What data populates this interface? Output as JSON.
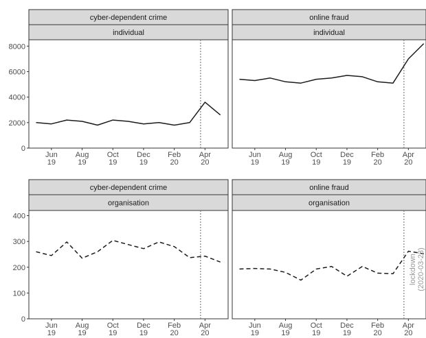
{
  "chart_data": [
    {
      "type": "line",
      "facet_col": "cyber-dependent crime",
      "facet_row": "individual",
      "x": [
        "2019-05",
        "2019-06",
        "2019-07",
        "2019-08",
        "2019-09",
        "2019-10",
        "2019-11",
        "2019-12",
        "2020-01",
        "2020-02",
        "2020-03",
        "2020-04",
        "2020-05"
      ],
      "values": [
        2000,
        1900,
        2200,
        2100,
        1800,
        2200,
        2100,
        1900,
        2000,
        1800,
        2000,
        3600,
        2600
      ],
      "ylim": [
        0,
        8500
      ],
      "yticks": [
        "0",
        "2000",
        "4000",
        "6000",
        "8000"
      ],
      "line_style": "solid",
      "lockdown": "2020-03-23"
    },
    {
      "type": "line",
      "facet_col": "online fraud",
      "facet_row": "individual",
      "x": [
        "2019-05",
        "2019-06",
        "2019-07",
        "2019-08",
        "2019-09",
        "2019-10",
        "2019-11",
        "2019-12",
        "2020-01",
        "2020-02",
        "2020-03",
        "2020-04",
        "2020-05"
      ],
      "values": [
        5400,
        5300,
        5500,
        5200,
        5100,
        5400,
        5500,
        5700,
        5600,
        5200,
        5100,
        7000,
        8200
      ],
      "ylim": [
        0,
        8500
      ],
      "line_style": "solid",
      "lockdown": "2020-03-23"
    },
    {
      "type": "line",
      "facet_col": "cyber-dependent crime",
      "facet_row": "organisation",
      "x": [
        "2019-05",
        "2019-06",
        "2019-07",
        "2019-08",
        "2019-09",
        "2019-10",
        "2019-11",
        "2019-12",
        "2020-01",
        "2020-02",
        "2020-03",
        "2020-04",
        "2020-05"
      ],
      "values": [
        260,
        245,
        298,
        235,
        260,
        304,
        288,
        272,
        298,
        280,
        237,
        243,
        220
      ],
      "ylim": [
        0,
        420
      ],
      "yticks": [
        "0",
        "100",
        "200",
        "300",
        "400"
      ],
      "line_style": "dashed",
      "lockdown": "2020-03-23"
    },
    {
      "type": "line",
      "facet_col": "online fraud",
      "facet_row": "organisation",
      "x": [
        "2019-05",
        "2019-06",
        "2019-07",
        "2019-08",
        "2019-09",
        "2019-10",
        "2019-11",
        "2019-12",
        "2020-01",
        "2020-02",
        "2020-03",
        "2020-04",
        "2020-05"
      ],
      "values": [
        193,
        195,
        193,
        180,
        150,
        193,
        203,
        165,
        203,
        177,
        175,
        262,
        252
      ],
      "ylim": [
        0,
        420
      ],
      "line_style": "dashed",
      "lockdown": "2020-03-23"
    }
  ],
  "x_ticks": [
    {
      "date": "2019-06",
      "month": "Jun",
      "year": "19"
    },
    {
      "date": "2019-08",
      "month": "Aug",
      "year": "19"
    },
    {
      "date": "2019-10",
      "month": "Oct",
      "year": "19"
    },
    {
      "date": "2019-12",
      "month": "Dec",
      "year": "19"
    },
    {
      "date": "2020-02",
      "month": "Feb",
      "year": "20"
    },
    {
      "date": "2020-04",
      "month": "Apr",
      "year": "20"
    }
  ],
  "annotation": {
    "line1": "lockdown",
    "line2": "(2020-03-23)"
  },
  "colors": {
    "strip_fill": "#d9d9d9",
    "line": "#1a1a1a",
    "lockdown_line": "#7f7f7f",
    "annotation": "#999999",
    "axis": "#333333"
  }
}
